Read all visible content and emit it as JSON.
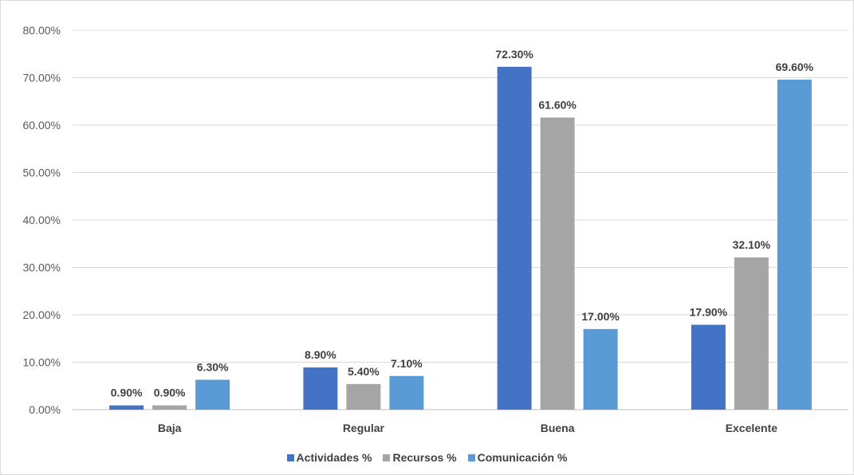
{
  "chart_data": {
    "type": "bar",
    "title": "",
    "xlabel": "",
    "ylabel": "",
    "categories": [
      "Baja",
      "Regular",
      "Buena",
      "Excelente"
    ],
    "series": [
      {
        "name": "Actividades %",
        "color": "#4472C4",
        "values": [
          0.9,
          8.9,
          72.3,
          17.9
        ],
        "labels": [
          "0.90%",
          "8.90%",
          "72.30%",
          "17.90%"
        ]
      },
      {
        "name": "Recursos %",
        "color": "#A5A5A5",
        "values": [
          0.9,
          5.4,
          61.6,
          32.1
        ],
        "labels": [
          "0.90%",
          "5.40%",
          "61.60%",
          "32.10%"
        ]
      },
      {
        "name": "Comunicación %",
        "color": "#5B9BD5",
        "values": [
          6.3,
          7.1,
          17.0,
          69.6
        ],
        "labels": [
          "6.30%",
          "7.10%",
          "17.00%",
          "69.60%"
        ]
      }
    ],
    "ylim": [
      0,
      80
    ],
    "yticks": [
      "0.00%",
      "10.00%",
      "20.00%",
      "30.00%",
      "40.00%",
      "50.00%",
      "60.00%",
      "70.00%",
      "80.00%"
    ],
    "grid": true,
    "legend_position": "bottom"
  }
}
